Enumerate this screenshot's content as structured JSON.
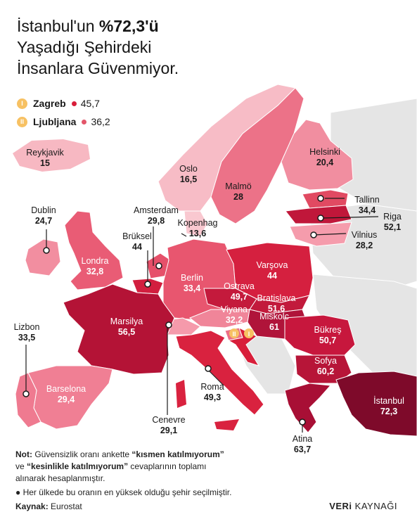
{
  "title": {
    "line1_prefix": "İstanbul'un ",
    "line1_highlight": "%72,3'ü",
    "line2": "Yaşadığı Şehirdeki",
    "line3": "İnsanlara Güvenmiyor."
  },
  "legend": [
    {
      "badge": "I",
      "city": "Zagreb",
      "value": "45,7",
      "color": "#d81e3a"
    },
    {
      "badge": "II",
      "city": "Ljubljana",
      "value": "36,2",
      "color": "#e3566a"
    }
  ],
  "cities": [
    {
      "id": "reykjavik",
      "name": "Reykjavik",
      "value": "15"
    },
    {
      "id": "oslo",
      "name": "Oslo",
      "value": "16,5"
    },
    {
      "id": "helsinki",
      "name": "Helsinki",
      "value": "20,4"
    },
    {
      "id": "malmo",
      "name": "Malmö",
      "value": "28"
    },
    {
      "id": "tallinn",
      "name": "Tallinn",
      "value": "34,4"
    },
    {
      "id": "riga",
      "name": "Riga",
      "value": "52,1"
    },
    {
      "id": "vilnius",
      "name": "Vilnius",
      "value": "28,2"
    },
    {
      "id": "dublin",
      "name": "Dublin",
      "value": "24,7"
    },
    {
      "id": "amsterdam",
      "name": "Amsterdam",
      "value": "29,8"
    },
    {
      "id": "kopenhag",
      "name": "Kopenhag",
      "value": "13,6"
    },
    {
      "id": "brussel",
      "name": "Brüksel",
      "value": "44"
    },
    {
      "id": "londra",
      "name": "Londra",
      "value": "32,8"
    },
    {
      "id": "berlin",
      "name": "Berlin",
      "value": "33,4"
    },
    {
      "id": "varsova",
      "name": "Varşova",
      "value": "44"
    },
    {
      "id": "ostrava",
      "name": "Ostrava",
      "value": "49,7"
    },
    {
      "id": "bratislava",
      "name": "Bratislava",
      "value": "51,6"
    },
    {
      "id": "viyana",
      "name": "Viyana",
      "value": "32,2"
    },
    {
      "id": "miskolc",
      "name": "Miskolc",
      "value": "61"
    },
    {
      "id": "marsilya",
      "name": "Marsilya",
      "value": "56,5"
    },
    {
      "id": "lizbon",
      "name": "Lizbon",
      "value": "33,5"
    },
    {
      "id": "barselona",
      "name": "Barselona",
      "value": "29,4"
    },
    {
      "id": "bukres",
      "name": "Bükreş",
      "value": "50,7"
    },
    {
      "id": "sofya",
      "name": "Sofya",
      "value": "60,2"
    },
    {
      "id": "roma",
      "name": "Roma",
      "value": "49,3"
    },
    {
      "id": "cenevre",
      "name": "Cenevre",
      "value": "29,1"
    },
    {
      "id": "istanbul",
      "name": "İstanbul",
      "value": "72,3"
    },
    {
      "id": "atina",
      "name": "Atina",
      "value": "63,7"
    }
  ],
  "colors": {
    "no_data": "#e5e5e5",
    "scale_light": "#f6b6c0",
    "scale_mid": "#ea6a80",
    "scale_red": "#dc2642",
    "scale_dark": "#b41236",
    "scale_darkest": "#7e0a2a"
  },
  "notes": {
    "note_label": "Not:",
    "note_text1": " Güvensizlik oranı ankette ",
    "note_q1": "“kısmen katılmıyorum”",
    "note_text2": "ve ",
    "note_q2": "“kesinlikle katılmıyorum”",
    "note_text3": " cevaplarının toplamı",
    "note_text4": "alınarak hesaplanmıştır.",
    "bullet": "Her ülkede bu oranın en yüksek olduğu şehir seçilmiştir.",
    "source_label": "Kaynak:",
    "source_value": " Eurostat"
  },
  "brand": {
    "part1": "VERi",
    "part2": " KAYNAĞI"
  }
}
